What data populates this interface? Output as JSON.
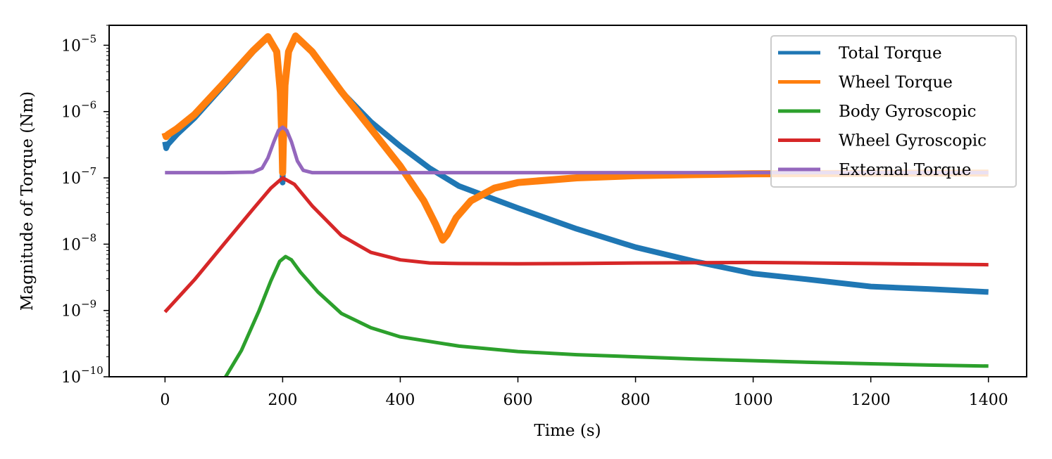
{
  "chart_data": {
    "type": "line",
    "xlabel": "Time (s)",
    "ylabel": "Magnitude of Torque (Nm)",
    "yscale": "log",
    "xlim": [
      -95,
      1465
    ],
    "ylim": [
      1e-10,
      2e-05
    ],
    "xticks": [
      0,
      200,
      400,
      600,
      800,
      1000,
      1200,
      1400
    ],
    "yticks": [
      {
        "value": 1e-10,
        "base": "10",
        "exp": "−10"
      },
      {
        "value": 1e-09,
        "base": "10",
        "exp": "−9"
      },
      {
        "value": 1e-08,
        "base": "10",
        "exp": "−8"
      },
      {
        "value": 1e-07,
        "base": "10",
        "exp": "−7"
      },
      {
        "value": 1e-06,
        "base": "10",
        "exp": "−6"
      },
      {
        "value": 1e-05,
        "base": "10",
        "exp": "−5"
      }
    ],
    "legend_position": "top-right",
    "grid": false,
    "series": [
      {
        "name": "Total Torque",
        "color": "#1f77b4",
        "width": 8,
        "x": [
          0,
          2,
          5,
          20,
          50,
          100,
          150,
          175,
          190,
          196,
          199,
          200,
          201,
          204,
          210,
          222,
          250,
          300,
          350,
          400,
          450,
          500,
          600,
          700,
          800,
          900,
          1000,
          1100,
          1200,
          1300,
          1400
        ],
        "y": [
          3.5e-07,
          2.8e-07,
          3.2e-07,
          4.5e-07,
          8e-07,
          2.5e-06,
          8e-06,
          1.3e-05,
          8e-06,
          2e-06,
          3e-07,
          8.5e-08,
          3e-07,
          2.5e-06,
          8e-06,
          1.35e-05,
          8e-06,
          2e-06,
          7e-07,
          3e-07,
          1.4e-07,
          7.5e-08,
          3.5e-08,
          1.7e-08,
          9e-09,
          5.5e-09,
          3.6e-09,
          2.9e-09,
          2.3e-09,
          2.1e-09,
          1.9e-09
        ]
      },
      {
        "name": "Wheel Torque",
        "color": "#ff7f0e",
        "width": 10,
        "x": [
          0,
          2,
          5,
          20,
          50,
          100,
          150,
          175,
          190,
          196,
          199,
          200,
          201,
          204,
          210,
          222,
          250,
          300,
          350,
          400,
          440,
          460,
          472,
          480,
          495,
          520,
          560,
          600,
          700,
          800,
          900,
          1000,
          1100,
          1200,
          1300,
          1400
        ],
        "y": [
          4.8e-07,
          4.2e-07,
          4.5e-07,
          5.5e-07,
          9e-07,
          2.7e-06,
          8.3e-06,
          1.35e-05,
          8e-06,
          2e-06,
          3e-07,
          1.2e-07,
          3e-07,
          2.5e-06,
          8e-06,
          1.38e-05,
          8e-06,
          2e-06,
          5.5e-07,
          1.5e-07,
          4.5e-08,
          2e-08,
          1.15e-08,
          1.4e-08,
          2.5e-08,
          4.5e-08,
          7e-08,
          8.5e-08,
          1e-07,
          1.08e-07,
          1.12e-07,
          1.15e-07,
          1.16e-07,
          1.17e-07,
          1.18e-07,
          1.18e-07
        ]
      },
      {
        "name": "Body Gyroscopic",
        "color": "#2ca02c",
        "width": 5,
        "x": [
          100,
          130,
          160,
          180,
          195,
          205,
          215,
          230,
          260,
          300,
          350,
          400,
          500,
          600,
          700,
          800,
          900,
          1000,
          1100,
          1200,
          1300,
          1400
        ],
        "y": [
          9e-11,
          2.5e-10,
          1e-09,
          2.8e-09,
          5.5e-09,
          6.5e-09,
          5.8e-09,
          3.8e-09,
          1.9e-09,
          9e-10,
          5.5e-10,
          4e-10,
          2.9e-10,
          2.4e-10,
          2.15e-10,
          2e-10,
          1.85e-10,
          1.75e-10,
          1.65e-10,
          1.57e-10,
          1.5e-10,
          1.45e-10
        ]
      },
      {
        "name": "Wheel Gyroscopic",
        "color": "#d62728",
        "width": 5,
        "x": [
          0,
          50,
          100,
          150,
          180,
          200,
          220,
          250,
          300,
          350,
          400,
          450,
          500,
          600,
          700,
          800,
          900,
          1000,
          1100,
          1200,
          1300,
          1400
        ],
        "y": [
          9.5e-10,
          2.9e-09,
          1e-08,
          3.4e-08,
          7e-08,
          1e-07,
          8e-08,
          3.8e-08,
          1.35e-08,
          7.5e-09,
          5.8e-09,
          5.2e-09,
          5.1e-09,
          5.05e-09,
          5.1e-09,
          5.2e-09,
          5.25e-09,
          5.3e-09,
          5.2e-09,
          5.1e-09,
          5e-09,
          4.9e-09
        ]
      },
      {
        "name": "External Torque",
        "color": "#9467bd",
        "width": 5,
        "x": [
          0,
          100,
          150,
          165,
          175,
          185,
          193,
          200,
          207,
          215,
          225,
          235,
          250,
          300,
          400,
          600,
          800,
          1000,
          1200,
          1400
        ],
        "y": [
          1.2e-07,
          1.2e-07,
          1.22e-07,
          1.4e-07,
          2e-07,
          3.5e-07,
          5.2e-07,
          5.8e-07,
          5.2e-07,
          3.5e-07,
          1.8e-07,
          1.3e-07,
          1.2e-07,
          1.2e-07,
          1.2e-07,
          1.2e-07,
          1.2e-07,
          1.2e-07,
          1.2e-07,
          1.2e-07
        ]
      }
    ]
  }
}
